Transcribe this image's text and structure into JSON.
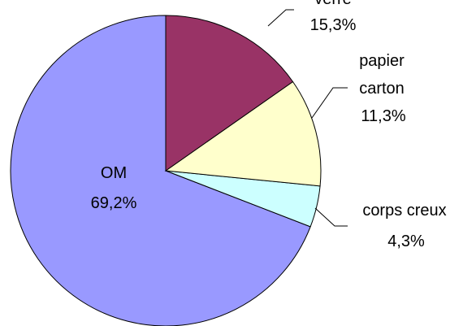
{
  "chart_data": {
    "type": "pie",
    "categories": [
      "verre",
      "papier carton",
      "corps creux",
      "OM"
    ],
    "values": [
      15.3,
      11.3,
      4.3,
      69.2
    ],
    "value_labels": [
      "15,3%",
      "11,3%",
      "4,3%",
      "69,2%"
    ],
    "colors": [
      "#993366",
      "#ffffcc",
      "#ccffff",
      "#9999ff"
    ]
  }
}
